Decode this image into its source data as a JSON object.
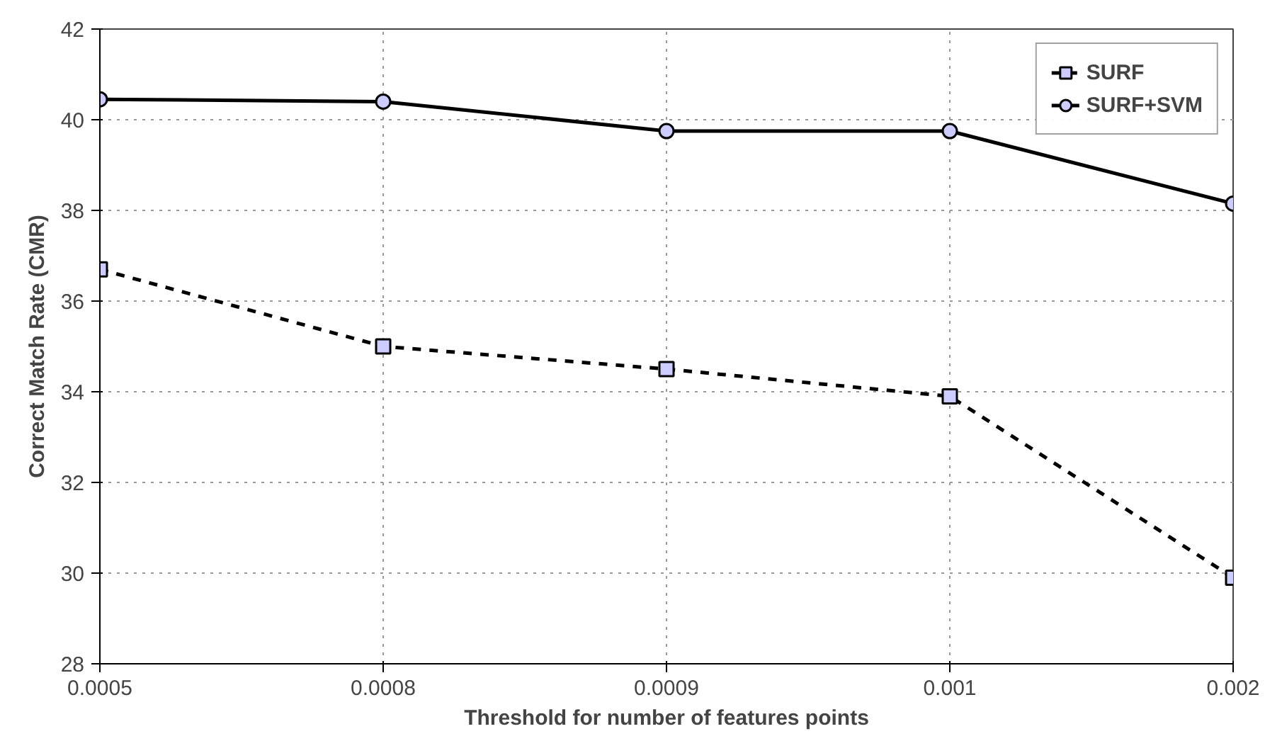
{
  "chart_data": {
    "type": "line",
    "xlabel": "Threshold for number of features points",
    "ylabel": "Correct Match Rate (CMR)",
    "categories": [
      "0.0005",
      "0.0008",
      "0.0009",
      "0.001",
      "0.002"
    ],
    "ylim": [
      28,
      42
    ],
    "yticks": [
      28,
      30,
      32,
      34,
      36,
      38,
      40,
      42
    ],
    "grid": true,
    "legend": "top right",
    "series": [
      {
        "name": "SURF",
        "color": "#000000",
        "marker": "square",
        "line_style": "dashed",
        "values": [
          36.7,
          35.0,
          34.5,
          33.9,
          29.9
        ]
      },
      {
        "name": "SURF+SVM",
        "color": "#000000",
        "marker": "circle",
        "line_style": "solid",
        "values": [
          40.45,
          40.4,
          39.75,
          39.75,
          38.15
        ]
      }
    ]
  }
}
